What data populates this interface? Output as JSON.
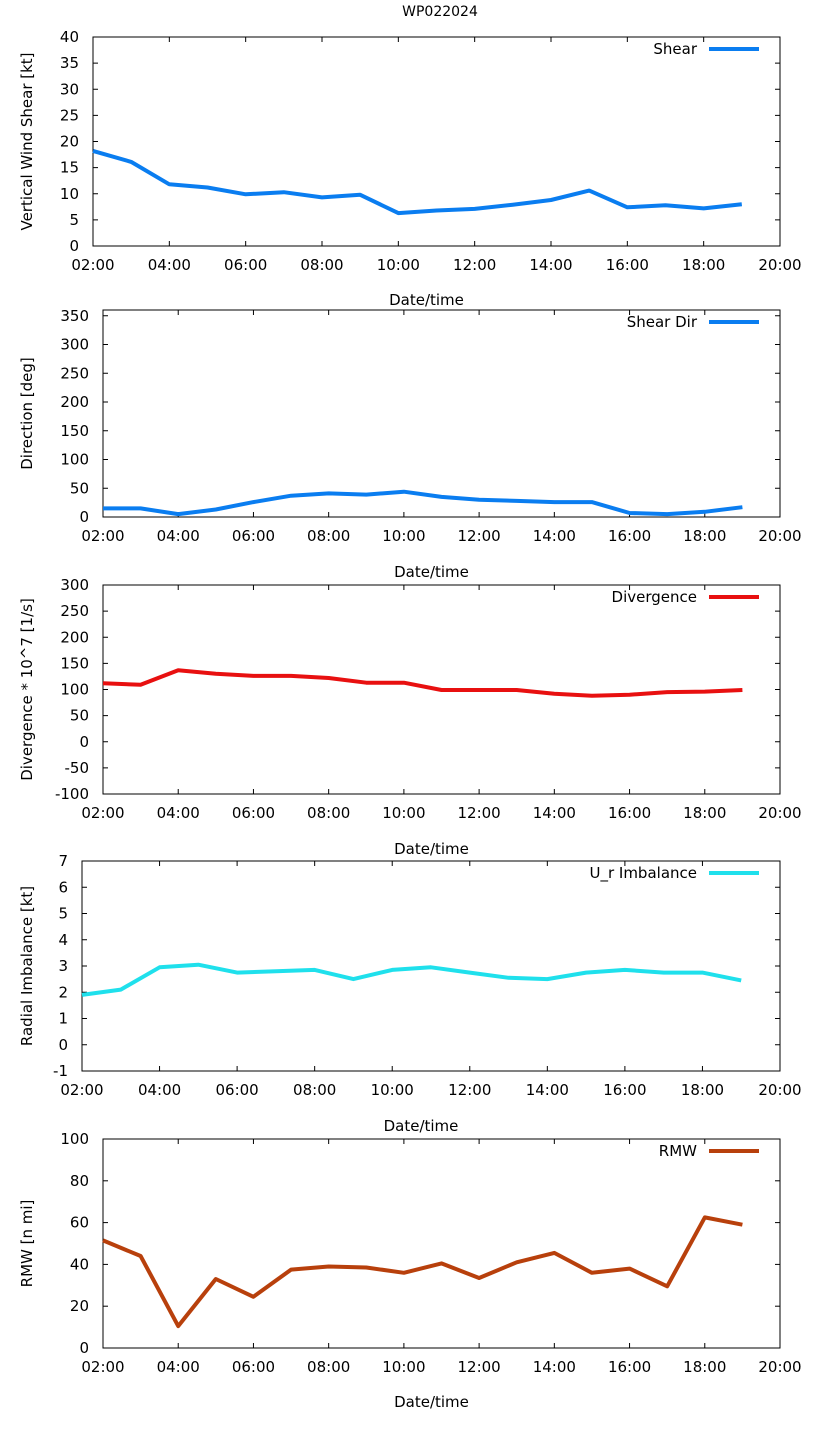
{
  "page_title": "WP022024",
  "chart_data": [
    {
      "type": "line",
      "title": "WP022024",
      "xlabel": "Date/time",
      "ylabel": "Vertical Wind Shear [kt]",
      "x_ticks": [
        "02:00",
        "04:00",
        "06:00",
        "08:00",
        "10:00",
        "12:00",
        "14:00",
        "16:00",
        "18:00",
        "20:00"
      ],
      "y_ticks": [
        "0",
        "5",
        "10",
        "15",
        "20",
        "25",
        "30",
        "35",
        "40"
      ],
      "xlim": [
        2,
        20
      ],
      "ylim": [
        0,
        40
      ],
      "legend": "top-right",
      "series": [
        {
          "name": "Shear",
          "color": "#0a7df0",
          "x": [
            2,
            3,
            4,
            5,
            6,
            7,
            8,
            9,
            10,
            11,
            12,
            13,
            14,
            15,
            16,
            17,
            18,
            19
          ],
          "values": [
            18.2,
            16.1,
            11.8,
            11.2,
            9.9,
            10.3,
            9.3,
            9.8,
            6.3,
            6.8,
            7.1,
            7.9,
            8.8,
            10.6,
            7.4,
            7.8,
            7.2,
            8.0
          ]
        }
      ]
    },
    {
      "type": "line",
      "xlabel": "Date/time",
      "ylabel": "Direction [deg]",
      "x_ticks": [
        "02:00",
        "04:00",
        "06:00",
        "08:00",
        "10:00",
        "12:00",
        "14:00",
        "16:00",
        "18:00",
        "20:00"
      ],
      "y_ticks": [
        "0",
        "50",
        "100",
        "150",
        "200",
        "250",
        "300",
        "350"
      ],
      "xlim": [
        2,
        20
      ],
      "ylim": [
        0,
        360
      ],
      "legend": "top-right",
      "series": [
        {
          "name": "Shear Dir",
          "color": "#0a7df0",
          "x": [
            2,
            3,
            4,
            5,
            6,
            7,
            8,
            9,
            10,
            11,
            12,
            13,
            14,
            15,
            16,
            17,
            18,
            19
          ],
          "values": [
            15,
            15,
            5,
            13,
            26,
            37,
            41,
            39,
            44,
            35,
            30,
            28,
            26,
            26,
            7,
            5,
            9,
            17
          ]
        }
      ]
    },
    {
      "type": "line",
      "xlabel": "Date/time",
      "ylabel": "Divergence * 10^7 [1/s]",
      "x_ticks": [
        "02:00",
        "04:00",
        "06:00",
        "08:00",
        "10:00",
        "12:00",
        "14:00",
        "16:00",
        "18:00",
        "20:00"
      ],
      "y_ticks": [
        "-100",
        "-50",
        "0",
        "50",
        "100",
        "150",
        "200",
        "250",
        "300"
      ],
      "xlim": [
        2,
        20
      ],
      "ylim": [
        -100,
        300
      ],
      "legend": "top-right",
      "series": [
        {
          "name": "Divergence",
          "color": "#e81010",
          "x": [
            2,
            3,
            4,
            5,
            6,
            7,
            8,
            9,
            10,
            11,
            12,
            13,
            14,
            15,
            16,
            17,
            18,
            19
          ],
          "values": [
            112,
            109,
            137,
            130,
            126,
            126,
            122,
            113,
            113,
            99,
            99,
            99,
            92,
            88,
            90,
            95,
            96,
            99
          ]
        }
      ]
    },
    {
      "type": "line",
      "xlabel": "Date/time",
      "ylabel": "Radial Imbalance [kt]",
      "x_ticks": [
        "02:00",
        "04:00",
        "06:00",
        "08:00",
        "10:00",
        "12:00",
        "14:00",
        "16:00",
        "18:00",
        "20:00"
      ],
      "y_ticks": [
        "-1",
        "0",
        "1",
        "2",
        "3",
        "4",
        "5",
        "6",
        "7"
      ],
      "xlim": [
        2,
        20
      ],
      "ylim": [
        -1,
        7
      ],
      "legend": "top-right",
      "series": [
        {
          "name": "U_r Imbalance",
          "color": "#1fe0ec",
          "x": [
            2,
            3,
            4,
            5,
            6,
            7,
            8,
            9,
            10,
            11,
            12,
            13,
            14,
            15,
            16,
            17,
            18,
            19
          ],
          "values": [
            1.9,
            2.1,
            2.95,
            3.05,
            2.75,
            2.8,
            2.85,
            2.5,
            2.85,
            2.95,
            2.75,
            2.55,
            2.5,
            2.75,
            2.85,
            2.75,
            2.75,
            2.45
          ]
        }
      ]
    },
    {
      "type": "line",
      "xlabel": "Date/time",
      "ylabel": "RMW [n mi]",
      "x_ticks": [
        "02:00",
        "04:00",
        "06:00",
        "08:00",
        "10:00",
        "12:00",
        "14:00",
        "16:00",
        "18:00",
        "20:00"
      ],
      "y_ticks": [
        "0",
        "20",
        "40",
        "60",
        "80",
        "100"
      ],
      "xlim": [
        2,
        20
      ],
      "ylim": [
        0,
        100
      ],
      "legend": "top-right",
      "series": [
        {
          "name": "RMW",
          "color": "#b8400c",
          "x": [
            2,
            3,
            4,
            5,
            6,
            7,
            8,
            9,
            10,
            11,
            12,
            13,
            14,
            15,
            16,
            17,
            18,
            19
          ],
          "values": [
            51.5,
            44,
            10.5,
            33,
            24.5,
            37.5,
            39,
            38.5,
            36,
            40.5,
            33.5,
            41,
            45.5,
            36,
            38,
            29.5,
            62.5,
            59
          ]
        }
      ]
    }
  ]
}
